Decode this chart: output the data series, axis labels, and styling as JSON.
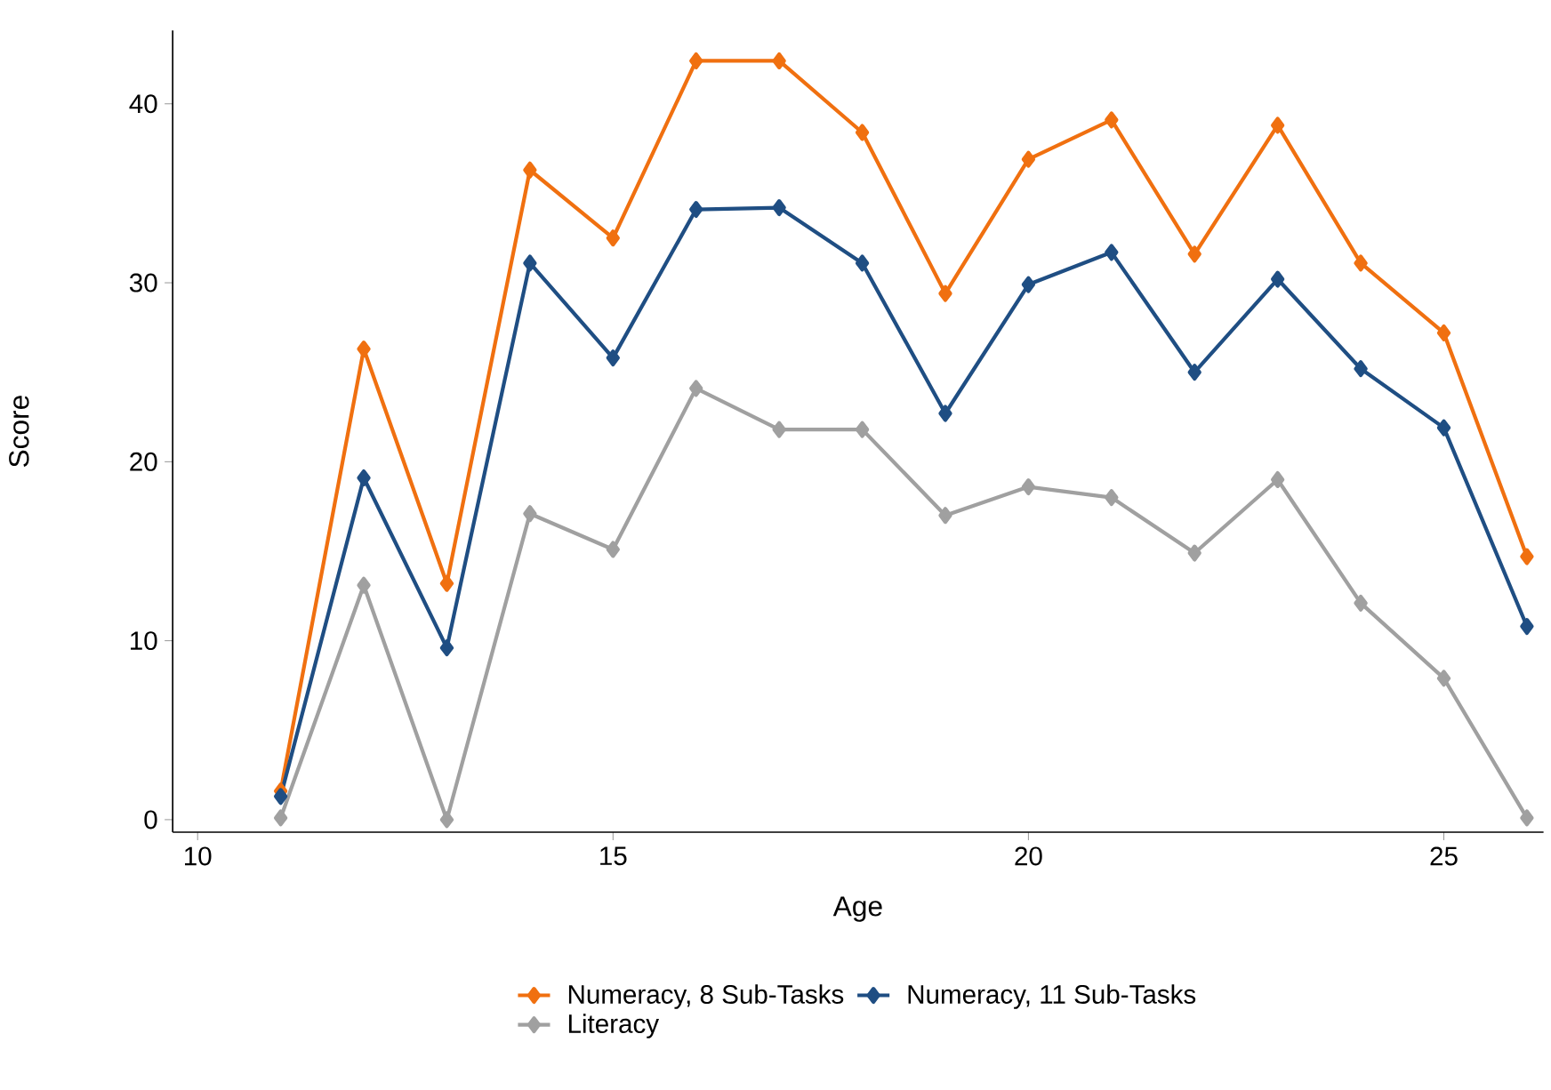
{
  "chart_data": {
    "type": "line",
    "xlabel": "Age",
    "ylabel": "Score",
    "x": [
      11,
      12,
      13,
      14,
      15,
      16,
      17,
      18,
      19,
      20,
      21,
      22,
      23,
      24,
      25,
      26
    ],
    "series": [
      {
        "name": "Numeracy, 8 Sub-Tasks",
        "color": "#f07010",
        "values": [
          1.6,
          26.3,
          13.2,
          36.3,
          32.5,
          42.4,
          42.4,
          38.4,
          29.4,
          36.9,
          39.1,
          31.6,
          38.8,
          31.1,
          27.2,
          14.7
        ]
      },
      {
        "name": "Numeracy, 11 Sub-Tasks",
        "color": "#1f4e83",
        "values": [
          1.3,
          19.1,
          9.6,
          31.1,
          25.8,
          34.1,
          34.2,
          31.1,
          22.7,
          29.9,
          31.7,
          25.0,
          30.2,
          25.2,
          21.9,
          10.8
        ]
      },
      {
        "name": "Literacy",
        "color": "#a0a0a0",
        "values": [
          0.1,
          13.1,
          0.0,
          17.1,
          15.1,
          24.1,
          21.8,
          21.8,
          17.0,
          18.6,
          18.0,
          14.9,
          19.0,
          12.1,
          7.9,
          0.1
        ]
      }
    ],
    "xlim": [
      9.7,
      26.2
    ],
    "ylim": [
      -0.7,
      44.1
    ],
    "xticks": [
      10,
      15,
      20,
      25
    ],
    "yticks": [
      0,
      10,
      20,
      30,
      40
    ],
    "legend": "bottom",
    "marker": "diamond",
    "line_style": "solid",
    "grid": false
  }
}
